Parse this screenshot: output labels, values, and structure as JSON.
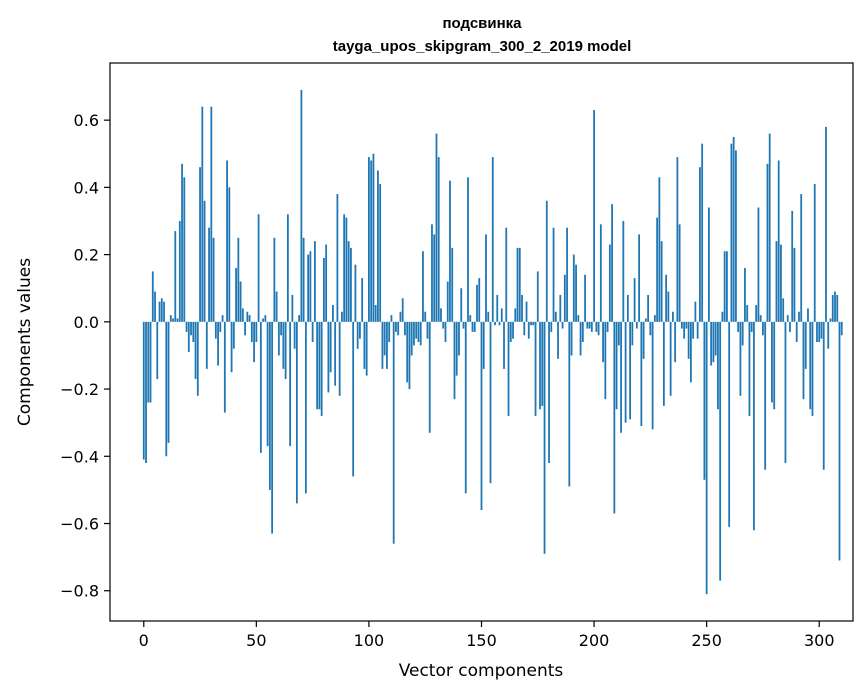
{
  "chart_data": {
    "type": "bar",
    "title_line1": "подсвинка",
    "title_line2": "tayga_upos_skipgram_300_2_2019 model",
    "xlabel": "Vector components",
    "ylabel": "Components values",
    "xlim": [
      -15,
      315
    ],
    "ylim": [
      -0.89,
      0.77
    ],
    "bar_color": "#1f77b4",
    "xticks": [
      0,
      50,
      100,
      150,
      200,
      250,
      300
    ],
    "xtick_labels": [
      "0",
      "50",
      "100",
      "150",
      "200",
      "250",
      "300"
    ],
    "yticks": [
      0.6,
      0.4,
      0.2,
      0.0,
      -0.2,
      -0.4,
      -0.6,
      -0.8
    ],
    "ytick_labels": [
      "0.6",
      "0.4",
      "0.2",
      "0.0",
      "−0.2",
      "−0.4",
      "−0.6",
      "−0.8"
    ],
    "values": [
      -0.41,
      -0.42,
      -0.24,
      -0.24,
      0.15,
      0.09,
      -0.17,
      0.06,
      0.07,
      0.06,
      -0.4,
      -0.36,
      0.02,
      0.01,
      0.27,
      0.01,
      0.3,
      0.47,
      0.43,
      -0.03,
      -0.09,
      -0.04,
      -0.06,
      -0.17,
      -0.22,
      0.46,
      0.64,
      0.36,
      -0.14,
      0.28,
      0.64,
      0.25,
      -0.05,
      -0.13,
      -0.03,
      0.02,
      -0.27,
      0.48,
      0.4,
      -0.15,
      -0.08,
      0.16,
      0.25,
      0.12,
      0.04,
      -0.04,
      0.03,
      0.02,
      -0.06,
      -0.12,
      -0.06,
      0.32,
      -0.39,
      0.01,
      0.02,
      -0.37,
      -0.5,
      -0.63,
      0.25,
      0.09,
      -0.1,
      -0.04,
      -0.14,
      -0.17,
      0.32,
      -0.37,
      0.08,
      -0.08,
      -0.54,
      0.02,
      0.69,
      0.25,
      -0.51,
      0.2,
      0.21,
      -0.06,
      0.24,
      -0.26,
      -0.26,
      -0.28,
      0.19,
      0.23,
      -0.21,
      -0.15,
      0.05,
      -0.19,
      0.38,
      -0.22,
      0.03,
      0.32,
      0.31,
      0.24,
      0.22,
      -0.46,
      0.17,
      -0.08,
      -0.05,
      0.13,
      -0.14,
      -0.16,
      0.49,
      0.48,
      0.5,
      0.05,
      0.45,
      0.41,
      -0.14,
      -0.1,
      -0.14,
      -0.06,
      0.02,
      -0.66,
      -0.03,
      -0.04,
      0.03,
      0.07,
      -0.04,
      -0.18,
      -0.2,
      -0.1,
      -0.07,
      -0.05,
      -0.06,
      -0.07,
      0.21,
      0.03,
      -0.05,
      -0.33,
      0.29,
      0.26,
      0.56,
      0.49,
      0.04,
      -0.02,
      -0.06,
      0.12,
      0.42,
      0.22,
      -0.23,
      -0.16,
      -0.1,
      0.1,
      -0.02,
      -0.51,
      0.43,
      0.02,
      -0.03,
      -0.03,
      0.11,
      0.13,
      -0.56,
      -0.14,
      0.26,
      0.03,
      -0.48,
      0.49,
      -0.01,
      0.08,
      -0.01,
      0.04,
      -0.14,
      0.28,
      -0.28,
      -0.06,
      -0.05,
      0.04,
      0.22,
      0.22,
      0.08,
      -0.04,
      0.06,
      -0.05,
      -0.01,
      -0.01,
      -0.28,
      0.15,
      -0.26,
      -0.25,
      -0.69,
      0.36,
      -0.42,
      -0.03,
      0.28,
      0.03,
      -0.11,
      0.08,
      -0.02,
      0.14,
      0.28,
      -0.49,
      -0.1,
      0.2,
      0.17,
      0.02,
      -0.1,
      -0.06,
      0.14,
      -0.02,
      -0.02,
      -0.03,
      0.63,
      -0.03,
      -0.04,
      0.29,
      -0.12,
      -0.23,
      -0.03,
      0.23,
      0.35,
      -0.57,
      -0.26,
      -0.07,
      -0.33,
      0.3,
      -0.3,
      0.08,
      -0.29,
      -0.07,
      0.13,
      -0.02,
      0.26,
      -0.31,
      -0.11,
      0.01,
      0.08,
      -0.04,
      -0.32,
      0.02,
      0.31,
      0.43,
      0.24,
      -0.25,
      0.14,
      0.09,
      -0.22,
      0.03,
      -0.12,
      0.49,
      0.29,
      -0.02,
      -0.05,
      -0.02,
      -0.11,
      -0.18,
      -0.05,
      0.06,
      -0.05,
      0.46,
      0.53,
      -0.47,
      -0.81,
      0.34,
      -0.13,
      -0.12,
      -0.1,
      -0.26,
      -0.77,
      0.03,
      0.21,
      0.21,
      -0.61,
      0.53,
      0.55,
      0.51,
      -0.03,
      -0.22,
      -0.07,
      0.16,
      0.05,
      -0.28,
      -0.03,
      -0.62,
      0.05,
      0.34,
      0.02,
      -0.04,
      -0.44,
      0.47,
      0.56,
      -0.24,
      -0.26,
      0.24,
      0.48,
      0.23,
      0.07,
      -0.42,
      0.02,
      -0.03,
      0.33,
      0.22,
      -0.06,
      0.03,
      0.38,
      -0.23,
      -0.14,
      0.04,
      -0.26,
      -0.28,
      0.41,
      -0.06,
      -0.06,
      -0.05,
      -0.44,
      0.58,
      -0.08,
      0.01,
      0.08,
      0.09,
      0.08,
      -0.71,
      -0.04
    ]
  }
}
